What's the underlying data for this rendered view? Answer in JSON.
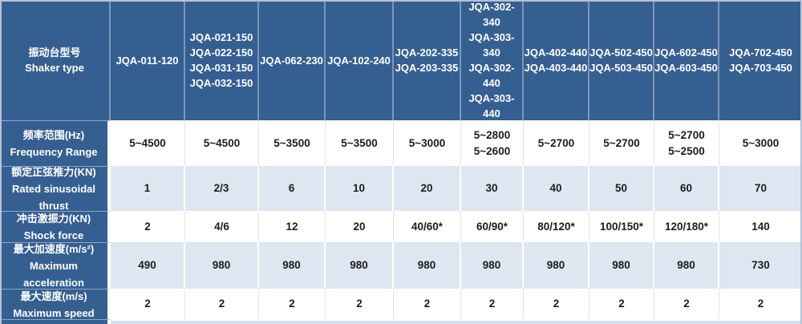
{
  "table": {
    "corner": {
      "cn": "振动台型号",
      "en": "Shaker type"
    },
    "columns": [
      {
        "models": [
          "JQA-011-120"
        ]
      },
      {
        "models": [
          "JQA-021-150",
          "JQA-022-150",
          "JQA-031-150",
          "JQA-032-150"
        ]
      },
      {
        "models": [
          "JQA-062-230"
        ]
      },
      {
        "models": [
          "JQA-102-240"
        ]
      },
      {
        "models": [
          "JQA-202-335",
          "JQA-203-335"
        ]
      },
      {
        "models": [
          "JQA-302-340",
          "JQA-303-340",
          "JQA-302-440",
          "JQA-303-440"
        ]
      },
      {
        "models": [
          "JQA-402-440",
          "JQA-403-440"
        ]
      },
      {
        "models": [
          "JQA-502-450",
          "JQA-503-450"
        ]
      },
      {
        "models": [
          "JQA-602-450",
          "JQA-603-450"
        ]
      },
      {
        "models": [
          "JQA-702-450",
          "JQA-703-450"
        ]
      }
    ],
    "rows": [
      {
        "label_cn": "频率范围(Hz)",
        "label_en": "Frequency Range",
        "values": [
          "5~4500",
          "5~4500",
          "5~3500",
          "5~3500",
          "5~3000",
          [
            "5~2800",
            "5~2600"
          ],
          "5~2700",
          "5~2700",
          [
            "5~2700",
            "5~2500"
          ],
          "5~3000"
        ]
      },
      {
        "label_cn": "额定正弦推力(KN)",
        "label_en": "Rated sinusoidal thrust",
        "values": [
          "1",
          "2/3",
          "6",
          "10",
          "20",
          "30",
          "40",
          "50",
          "60",
          "70"
        ]
      },
      {
        "label_cn": "冲击激振力(KN)",
        "label_en": "Shock force",
        "values": [
          "2",
          "4/6",
          "12",
          "20",
          "40/60*",
          "60/90*",
          "80/120*",
          "100/150*",
          "120/180*",
          "140"
        ]
      },
      {
        "label_cn": "最大加速度(m/s²)",
        "label_en": "Maximum acceleration",
        "values": [
          "490",
          "980",
          "980",
          "980",
          "980",
          "980",
          "980",
          "980",
          "980",
          "730"
        ]
      },
      {
        "label_cn": "最大速度(m/s)",
        "label_en": "Maximum speed",
        "values": [
          "2",
          "2",
          "2",
          "2",
          "2",
          "2",
          "2",
          "2",
          "2",
          "2"
        ]
      }
    ],
    "colors": {
      "header_bg": "#365F91",
      "row_white_bg": "#FFFFFF",
      "row_alt_bg": "#DDE6F1",
      "bottom_partial_bg": "#D4DEED",
      "outer_border": "#B6C2D6",
      "header_text": "#FFFFFF",
      "data_text": "#1C1C1C"
    }
  }
}
